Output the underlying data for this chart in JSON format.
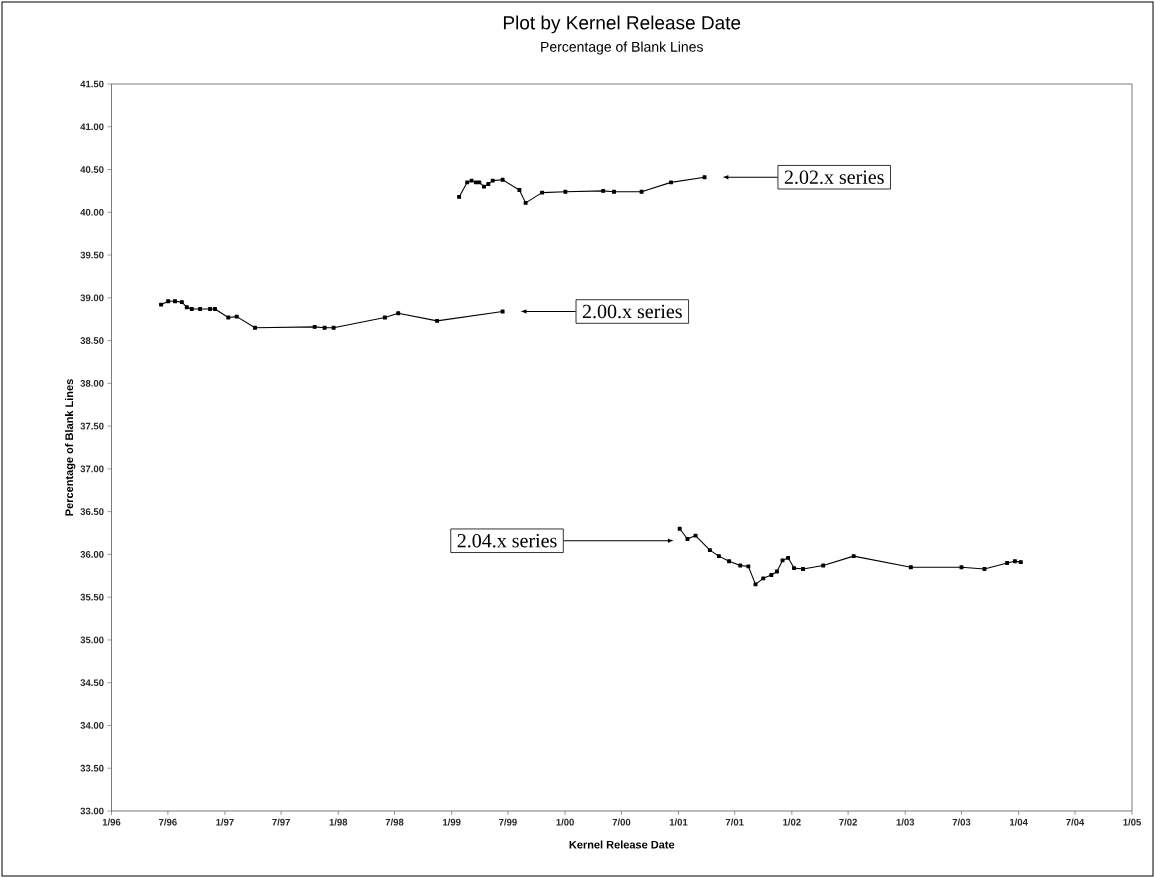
{
  "chart_data": {
    "type": "line",
    "title": "Plot by Kernel Release Date",
    "subtitle": "Percentage of Blank Lines",
    "xlabel": "Kernel Release Date",
    "ylabel": "Percentage of Blank Lines",
    "xlim": [
      "1996-01-01",
      "2005-01-01"
    ],
    "xticks": [
      {
        "value": "1996-01-01",
        "label": "1/96"
      },
      {
        "value": "1996-07-01",
        "label": "7/96"
      },
      {
        "value": "1997-01-01",
        "label": "1/97"
      },
      {
        "value": "1997-07-01",
        "label": "7/97"
      },
      {
        "value": "1998-01-01",
        "label": "1/98"
      },
      {
        "value": "1998-07-01",
        "label": "7/98"
      },
      {
        "value": "1999-01-01",
        "label": "1/99"
      },
      {
        "value": "1999-07-01",
        "label": "7/99"
      },
      {
        "value": "2000-01-01",
        "label": "1/00"
      },
      {
        "value": "2000-07-01",
        "label": "7/00"
      },
      {
        "value": "2001-01-01",
        "label": "1/01"
      },
      {
        "value": "2001-07-01",
        "label": "7/01"
      },
      {
        "value": "2002-01-01",
        "label": "1/02"
      },
      {
        "value": "2002-07-01",
        "label": "7/02"
      },
      {
        "value": "2003-01-01",
        "label": "1/03"
      },
      {
        "value": "2003-07-01",
        "label": "7/03"
      },
      {
        "value": "2004-01-01",
        "label": "1/04"
      },
      {
        "value": "2004-07-01",
        "label": "7/04"
      },
      {
        "value": "2005-01-01",
        "label": "1/05"
      }
    ],
    "ylim": [
      33,
      41.5
    ],
    "yticks": [
      {
        "value": 33,
        "label": "33.00"
      },
      {
        "value": 33.5,
        "label": "33.50"
      },
      {
        "value": 34,
        "label": "34.00"
      },
      {
        "value": 34.5,
        "label": "34.50"
      },
      {
        "value": 35,
        "label": "35.00"
      },
      {
        "value": 35.5,
        "label": "35.50"
      },
      {
        "value": 36,
        "label": "36.00"
      },
      {
        "value": 36.5,
        "label": "36.50"
      },
      {
        "value": 37,
        "label": "37.00"
      },
      {
        "value": 37.5,
        "label": "37.50"
      },
      {
        "value": 38,
        "label": "38.00"
      },
      {
        "value": 38.5,
        "label": "38.50"
      },
      {
        "value": 39,
        "label": "39.00"
      },
      {
        "value": 39.5,
        "label": "39.50"
      },
      {
        "value": 40,
        "label": "40.00"
      },
      {
        "value": 40.5,
        "label": "40.50"
      },
      {
        "value": 41,
        "label": "41.00"
      },
      {
        "value": 41.5,
        "label": "41.50"
      }
    ],
    "marker": "square",
    "line_style": "solid",
    "series": [
      {
        "color": "#000000",
        "x": [
          "1996-06-09",
          "1996-07-02",
          "1996-07-24",
          "1996-08-15",
          "1996-08-31",
          "1996-09-16",
          "1996-10-13",
          "1996-11-14",
          "1996-11-30",
          "1997-01-12",
          "1997-02-08",
          "1997-04-08",
          "1997-10-17",
          "1997-11-18",
          "1997-12-17",
          "1998-05-31",
          "1998-07-13",
          "1998-11-15",
          "1999-06-14"
        ],
        "values": [
          38.92,
          38.96,
          38.96,
          38.95,
          38.89,
          38.87,
          38.87,
          38.87,
          38.87,
          38.77,
          38.78,
          38.65,
          38.66,
          38.65,
          38.65,
          38.77,
          38.82,
          38.73,
          38.84
        ]
      },
      {
        "color": "#000000",
        "x": [
          "1999-01-25",
          "1999-02-20",
          "1999-03-06",
          "1999-03-20",
          "1999-03-31",
          "1999-04-15",
          "1999-04-29",
          "1999-05-13",
          "1999-06-14",
          "1999-08-07",
          "1999-08-27",
          "1999-10-19",
          "2000-01-02",
          "2000-05-03",
          "2000-06-07",
          "2000-09-04",
          "2000-12-08",
          "2001-03-26"
        ],
        "values": [
          40.18,
          40.35,
          40.37,
          40.35,
          40.35,
          40.3,
          40.33,
          40.37,
          40.38,
          40.26,
          40.11,
          40.23,
          40.24,
          40.25,
          40.24,
          40.24,
          40.35,
          40.41
        ]
      },
      {
        "color": "#000000",
        "x": [
          "2001-01-05",
          "2001-01-30",
          "2001-02-25",
          "2001-04-12",
          "2001-05-11",
          "2001-06-13",
          "2001-07-19",
          "2001-08-14",
          "2001-09-06",
          "2001-10-01",
          "2001-10-27",
          "2001-11-14",
          "2001-12-02",
          "2001-12-20",
          "2002-01-08",
          "2002-02-06",
          "2002-04-12",
          "2002-07-19",
          "2003-01-19",
          "2003-07-01",
          "2003-09-13",
          "2003-11-25",
          "2003-12-20",
          "2004-01-08"
        ],
        "values": [
          36.3,
          36.18,
          36.22,
          36.05,
          35.98,
          35.92,
          35.87,
          35.86,
          35.65,
          35.72,
          35.76,
          35.8,
          35.93,
          35.96,
          35.84,
          35.83,
          35.87,
          35.98,
          35.85,
          35.85,
          35.83,
          35.9,
          35.92,
          35.91
        ]
      }
    ],
    "annotations": [
      "2.00.x series",
      "2.02.x series",
      "2.04.x series"
    ]
  }
}
